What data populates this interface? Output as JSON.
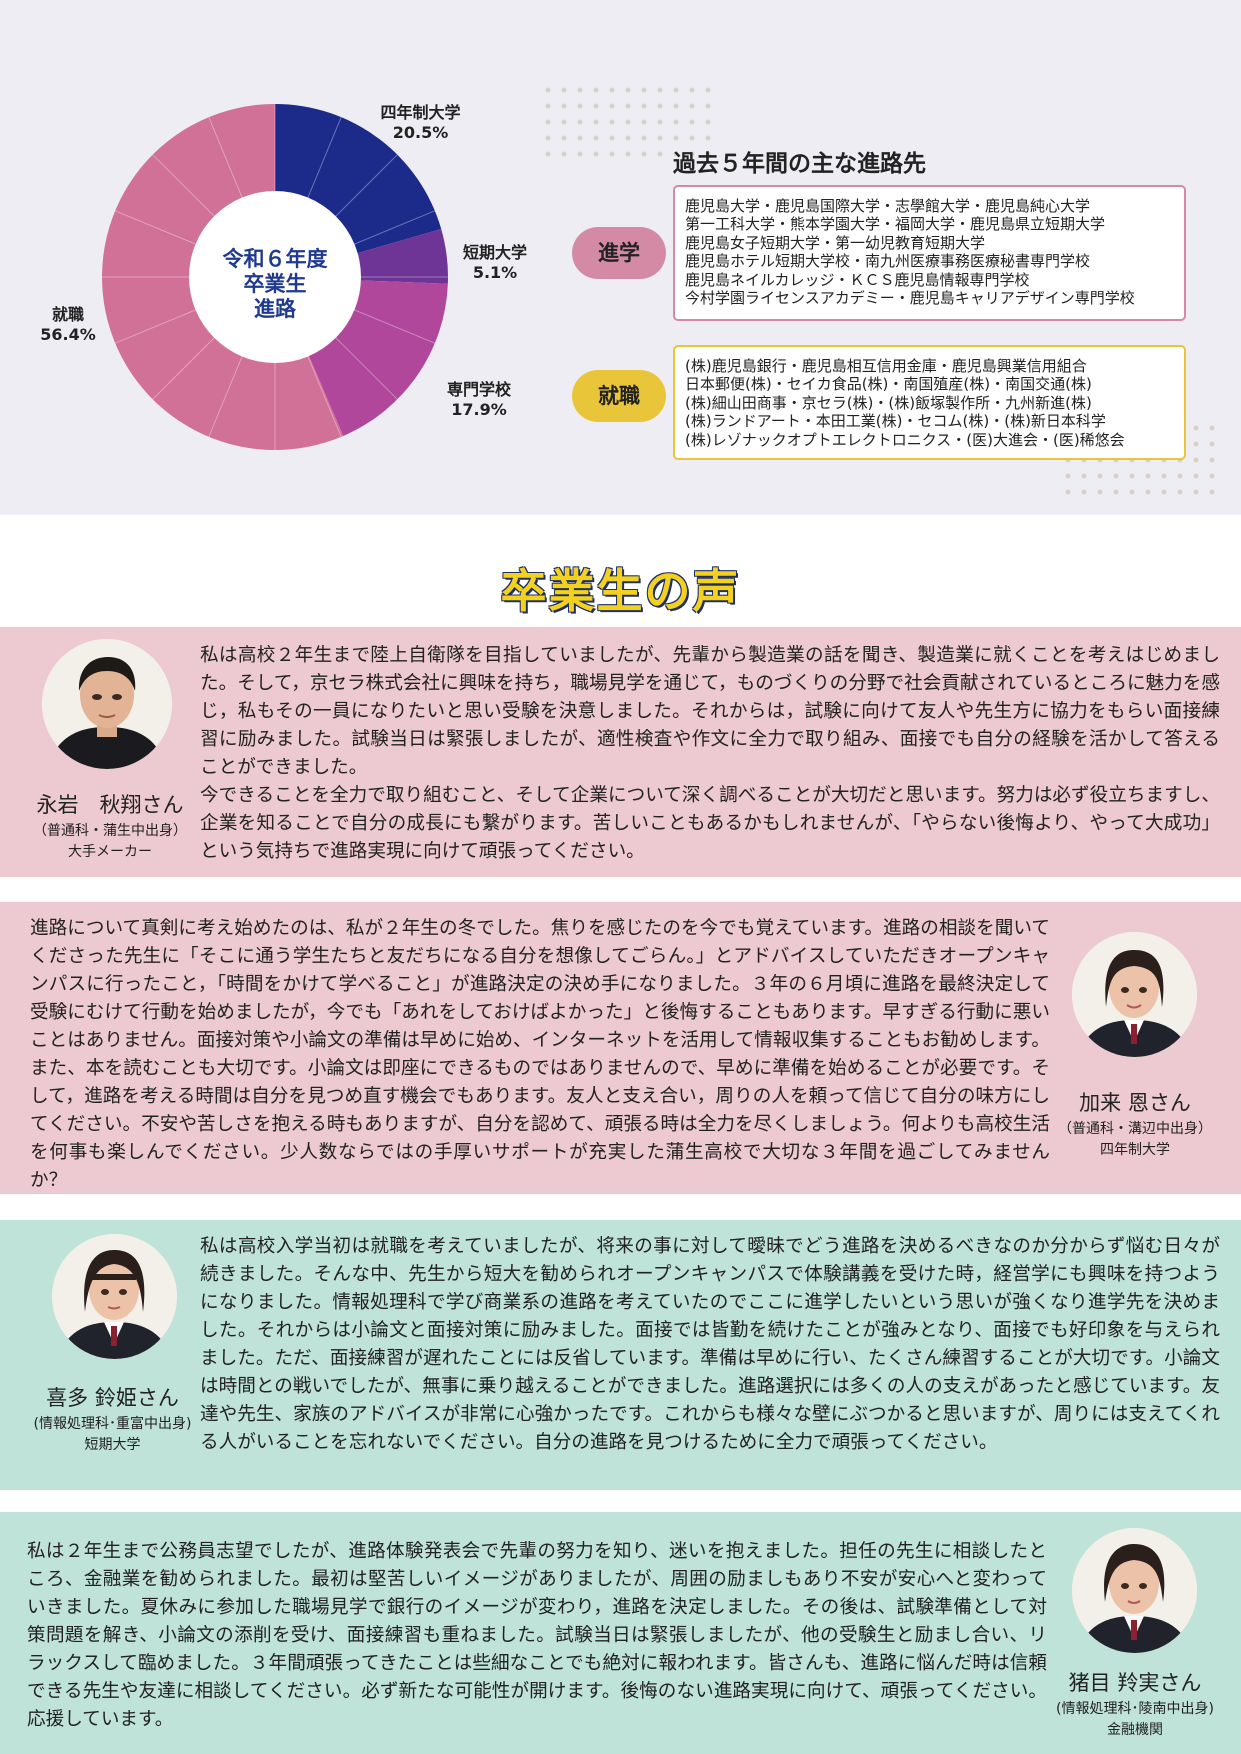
{
  "chart_data": {
    "type": "pie",
    "title": "令和６年度\n卒業生\n進路",
    "slices": [
      {
        "label": "四年制大学",
        "value": 20.5,
        "value_label": "20.5%",
        "color": "#1c2a8a"
      },
      {
        "label": "短期大学",
        "value": 5.1,
        "value_label": "5.1%",
        "color": "#6e3596"
      },
      {
        "label": "専門学校",
        "value": 17.9,
        "value_label": "17.9%",
        "color": "#b0479b"
      },
      {
        "label": "就職",
        "value": 56.4,
        "value_label": "56.4%",
        "color": "#d27197"
      }
    ],
    "center_lines": [
      "令和６年度",
      "卒業生",
      "進路"
    ]
  },
  "destinations": {
    "title": "過去５年間の主な進路先",
    "sections": [
      {
        "label": "進学",
        "color": "#d48aa5",
        "lines": [
          "鹿児島大学・鹿児島国際大学・志學館大学・鹿児島純心大学",
          "第一工科大学・熊本学園大学・福岡大学・鹿児島県立短期大学",
          "鹿児島女子短期大学・第一幼児教育短期大学",
          "鹿児島ホテル短期大学校・南九州医療事務医療秘書専門学校",
          "鹿児島ネイルカレッジ・ＫＣＳ鹿児島情報専門学校",
          "今村学園ライセンスアカデミー・鹿児島キャリアデザイン専門学校"
        ]
      },
      {
        "label": "就職",
        "color": "#e9c53a",
        "lines": [
          "(株)鹿児島銀行・鹿児島相互信用金庫・鹿児島興業信用組合",
          "日本郵便(株)・セイカ食品(株)・南国殖産(株)・南国交通(株)",
          "(株)細山田商事・京セラ(株)・(株)飯塚製作所・九州新進(株)",
          "(株)ランドアート・本田工業(株)・セコム(株)・(株)新日本科学",
          "(株)レゾナックオプトエレクトロニクス・(医)大進会・(医)稀悠会"
        ]
      }
    ]
  },
  "voices": {
    "title": "卒業生の声",
    "items": [
      {
        "name": "永岩　秋翔さん",
        "origin": "（普通科・蒲生中出身）",
        "dest": "大手メーカー",
        "bg": "#edc9d1",
        "text": "私は高校２年生まで陸上自衛隊を目指していましたが、先輩から製造業の話を聞き、製造業に就くことを考えはじめました。そして，京セラ株式会社に興味を持ち，職場見学を通じて，ものづくりの分野で社会貢献されているところに魅力を感じ，私もその一員になりたいと思い受験を決意しました。それからは，試験に向けて友人や先生方に協力をもらい面接練習に励みました。試験当日は緊張しましたが、適性検査や作文に全力で取り組み、面接でも自分の経験を活かして答えることができました。\n今できることを全力で取り組むこと、そして企業について深く調べることが大切だと思います。努力は必ず役立ちますし、企業を知ることで自分の成長にも繋がります。苦しいこともあるかもしれませんが、「やらない後悔より、やって大成功」という気持ちで進路実現に向けて頑張ってください。"
      },
      {
        "name": "加来 恩さん",
        "origin": "（普通科・溝辺中出身）",
        "dest": "四年制大学",
        "bg": "#edc9d1",
        "text": "進路について真剣に考え始めたのは、私が２年生の冬でした。焦りを感じたのを今でも覚えています。進路の相談を聞いてくださった先生に「そこに通う学生たちと友だちになる自分を想像してごらん。」とアドバイスしていただきオープンキャンパスに行ったこと，「時間をかけて学べること」が進路決定の決め手になりました。３年の６月頃に進路を最終決定して受験にむけて行動を始めましたが，今でも「あれをしておけばよかった」と後悔することもあります。早すぎる行動に悪いことはありません。面接対策や小論文の準備は早めに始め、インターネットを活用して情報収集することもお勧めします。また、本を読むことも大切です。小論文は即座にできるものではありませんので、早めに準備を始めることが必要です。そして，進路を考える時間は自分を見つめ直す機会でもあります。友人と支え合い，周りの人を頼って信じて自分の味方にしてください。不安や苦しさを抱える時もありますが、自分を認めて、頑張る時は全力を尽くしましょう。何よりも高校生活を何事も楽しんでください。少人数ならではの手厚いサポートが充実した蒲生高校で大切な３年間を過ごしてみませんか？"
      },
      {
        "name": "喜多 鈴姫さん",
        "origin": "(情報処理科･重富中出身)",
        "dest": "短期大学",
        "bg": "#bfe3d9",
        "text": "私は高校入学当初は就職を考えていましたが、将来の事に対して曖昧でどう進路を決めるべきなのか分からず悩む日々が続きました。そんな中、先生から短大を勧められオープンキャンパスで体験講義を受けた時，経営学にも興味を持つようになりました。情報処理科で学び商業系の進路を考えていたのでここに進学したいという思いが強くなり進学先を決めました。それからは小論文と面接対策に励みました。面接では皆勤を続けたことが強みとなり、面接でも好印象を与えられました。ただ、面接練習が遅れたことには反省しています。準備は早めに行い、たくさん練習することが大切です。小論文は時間との戦いでしたが、無事に乗り越えることができました。進路選択には多くの人の支えがあったと感じています。友達や先生、家族のアドバイスが非常に心強かったです。これからも様々な壁にぶつかると思いますが、周りには支えてくれる人がいることを忘れないでください。自分の進路を見つけるために全力で頑張ってください。"
      },
      {
        "name": "猪目 羚実さん",
        "origin": "(情報処理科･陵南中出身)",
        "dest": "金融機関",
        "bg": "#bfe3d9",
        "text": "私は２年生まで公務員志望でしたが、進路体験発表会で先輩の努力を知り、迷いを抱えました。担任の先生に相談したところ、金融業を勧められました。最初は堅苦しいイメージがありましたが、周囲の励ましもあり不安が安心へと変わっていきました。夏休みに参加した職場見学で銀行のイメージが変わり，進路を決定しました。その後は、試験準備として対策問題を解き、小論文の添削を受け、面接練習も重ねました。試験当日は緊張しましたが、他の受験生と励まし合い、リラックスして臨めました。３年間頑張ってきたことは些細なことでも絶対に報われます。皆さんも、進路に悩んだ時は信頼できる先生や友達に相談してください。必ず新たな可能性が開けます。後悔のない進路実現に向けて、頑張ってください。応援しています。"
      }
    ]
  }
}
